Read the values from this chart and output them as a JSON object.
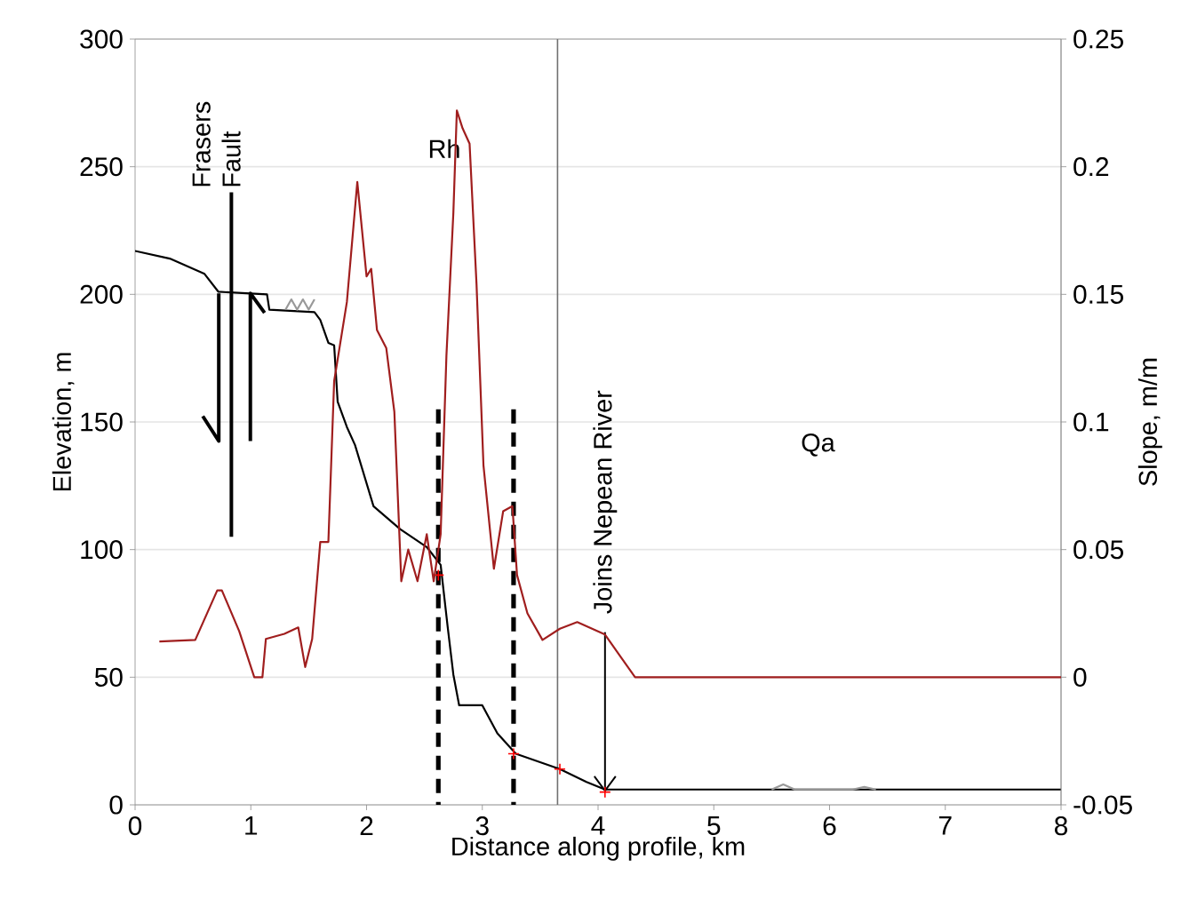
{
  "chart_data": {
    "type": "line",
    "xlabel": "Distance along profile, km",
    "ylabel": "Elevation, m",
    "y2label": "Slope, m/m",
    "xlim": [
      0,
      8
    ],
    "xticks": [
      0,
      1,
      2,
      3,
      4,
      5,
      6,
      7,
      8
    ],
    "ylim": [
      0,
      300
    ],
    "yticks": [
      0,
      50,
      100,
      150,
      200,
      250,
      300
    ],
    "y2lim": [
      -0.05,
      0.25
    ],
    "y2ticks": [
      -0.05,
      0,
      0.05,
      0.1,
      0.15,
      0.2,
      0.25
    ],
    "grid": "y",
    "series": [
      {
        "color": "#000000",
        "x": [
          0,
          0.3,
          0.6,
          0.72,
          1.14,
          1.16,
          1.55,
          1.6,
          1.67,
          1.72,
          1.75,
          1.83,
          1.9,
          2.06,
          2.29,
          2.52,
          2.64,
          2.7,
          2.75,
          2.8,
          3.0,
          3.13,
          3.29,
          3.67,
          3.9,
          4.06,
          8
        ],
        "values": [
          217,
          214,
          208,
          201,
          200,
          194,
          193,
          190,
          181,
          180,
          158,
          148,
          141,
          117,
          108,
          101,
          94,
          70,
          51,
          39,
          39,
          28,
          20,
          14,
          9,
          6,
          6
        ]
      },
      {
        "color": "#a01e1e",
        "axis": "y2",
        "x": [
          0.21,
          0.52,
          0.71,
          0.75,
          0.9,
          1.03,
          1.1,
          1.13,
          1.29,
          1.41,
          1.47,
          1.53,
          1.6,
          1.67,
          1.72,
          1.83,
          1.92,
          2.0,
          2.04,
          2.09,
          2.17,
          2.24,
          2.3,
          2.36,
          2.44,
          2.52,
          2.58,
          2.64,
          2.69,
          2.75,
          2.78,
          2.83,
          2.89,
          2.95,
          3.01,
          3.1,
          3.18,
          3.26,
          3.3,
          3.39,
          3.52,
          3.67,
          3.82,
          4.06,
          4.21,
          4.32,
          8
        ],
        "values": [
          0.014,
          0.0146,
          0.034,
          0.034,
          0.018,
          0,
          0,
          0.015,
          0.017,
          0.0195,
          0.004,
          0.015,
          0.053,
          0.053,
          0.116,
          0.147,
          0.194,
          0.157,
          0.16,
          0.136,
          0.129,
          0.104,
          0.0376,
          0.05,
          0.0376,
          0.056,
          0.0376,
          0.056,
          0.126,
          0.182,
          0.222,
          0.215,
          0.209,
          0.154,
          0.083,
          0.0425,
          0.065,
          0.067,
          0.04,
          0.025,
          0.0146,
          0.019,
          0.0216,
          0.0167,
          0.007,
          0,
          0
        ]
      },
      {
        "color": "#999999",
        "x": [
          1.3,
          1.35,
          1.4,
          1.45,
          1.5,
          1.55,
          3.0,
          5.5,
          5.6,
          5.7,
          6.2,
          6.3,
          6.4
        ],
        "values": [
          194,
          198,
          194,
          198,
          194,
          198,
          null,
          6,
          8,
          6,
          6,
          7,
          6
        ]
      },
      {
        "type": "scatter",
        "marker": "cross",
        "color": "#ff0000",
        "x": [
          2.62,
          3.27,
          3.67,
          4.06
        ],
        "values": [
          90,
          20,
          14,
          5
        ]
      },
      {
        "color": "#000000",
        "line_style": "dashed",
        "x": [
          2.62,
          2.62
        ],
        "values": [
          155,
          0
        ]
      },
      {
        "color": "#000000",
        "line_style": "dashed",
        "x": [
          3.27,
          3.27
        ],
        "values": [
          155,
          0
        ]
      }
    ],
    "ref_lines": [
      {
        "axis": "x",
        "value": 3.65,
        "color": "#707070"
      }
    ],
    "annotations": [
      "Frasers Fault",
      "Rh",
      {
        "text": "Joins Nepean River",
        "x": 4.06,
        "y": 5
      },
      "Qa"
    ]
  }
}
